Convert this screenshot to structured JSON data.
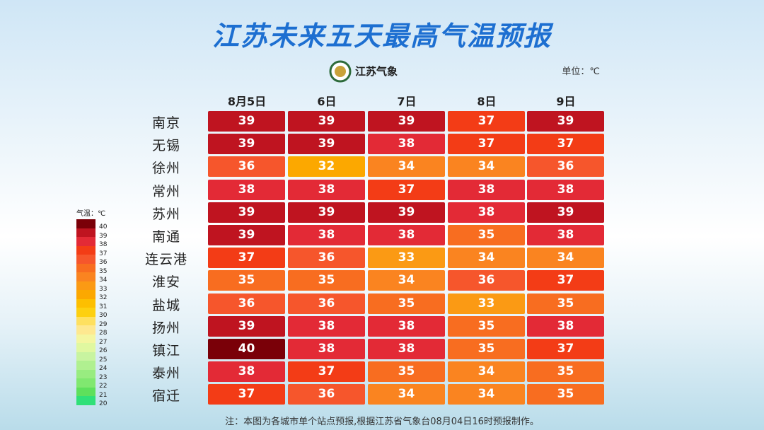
{
  "title": "江苏未来五天最高气温预报",
  "logo_text": "江苏气象",
  "unit": "单位：℃",
  "columns": [
    "8月5日",
    "6日",
    "7日",
    "8日",
    "9日"
  ],
  "rows": [
    {
      "city": "南京",
      "values": [
        39,
        39,
        39,
        37,
        39
      ]
    },
    {
      "city": "无锡",
      "values": [
        39,
        39,
        38,
        37,
        37
      ]
    },
    {
      "city": "徐州",
      "values": [
        36,
        32,
        34,
        34,
        36
      ]
    },
    {
      "city": "常州",
      "values": [
        38,
        38,
        37,
        38,
        38
      ]
    },
    {
      "city": "苏州",
      "values": [
        39,
        39,
        39,
        38,
        39
      ]
    },
    {
      "city": "南通",
      "values": [
        39,
        38,
        38,
        35,
        38
      ]
    },
    {
      "city": "连云港",
      "values": [
        37,
        36,
        33,
        34,
        34
      ]
    },
    {
      "city": "淮安",
      "values": [
        35,
        35,
        34,
        36,
        37
      ]
    },
    {
      "city": "盐城",
      "values": [
        36,
        36,
        35,
        33,
        35
      ]
    },
    {
      "city": "扬州",
      "values": [
        39,
        38,
        38,
        35,
        38
      ]
    },
    {
      "city": "镇江",
      "values": [
        40,
        38,
        38,
        35,
        37
      ]
    },
    {
      "city": "泰州",
      "values": [
        38,
        37,
        35,
        34,
        35
      ]
    },
    {
      "city": "宿迁",
      "values": [
        37,
        36,
        34,
        34,
        35
      ]
    }
  ],
  "legend": {
    "title": "气温：℃",
    "levels": [
      {
        "value": 40,
        "color": "#7a0008"
      },
      {
        "value": 39,
        "color": "#bf1420"
      },
      {
        "value": 38,
        "color": "#e32a36"
      },
      {
        "value": 37,
        "color": "#f33c16"
      },
      {
        "value": 36,
        "color": "#f6562c"
      },
      {
        "value": 35,
        "color": "#f86d20"
      },
      {
        "value": 34,
        "color": "#fa8420"
      },
      {
        "value": 33,
        "color": "#fb9a14"
      },
      {
        "value": 32,
        "color": "#fca800"
      },
      {
        "value": 31,
        "color": "#fdbf00"
      },
      {
        "value": 30,
        "color": "#fdd010"
      },
      {
        "value": 29,
        "color": "#fee060"
      },
      {
        "value": 28,
        "color": "#fee890"
      },
      {
        "value": 27,
        "color": "#f4f6a0"
      },
      {
        "value": 26,
        "color": "#e0f8a0"
      },
      {
        "value": 25,
        "color": "#c8f4a0"
      },
      {
        "value": 24,
        "color": "#b0f090"
      },
      {
        "value": 23,
        "color": "#98ec80"
      },
      {
        "value": 22,
        "color": "#80e870"
      },
      {
        "value": 21,
        "color": "#5ee05c"
      },
      {
        "value": 20,
        "color": "#30e078"
      }
    ]
  },
  "footnote": "注：本图为各城市单个站点预报,根据江苏省气象台08月04日16时预报制作。"
}
